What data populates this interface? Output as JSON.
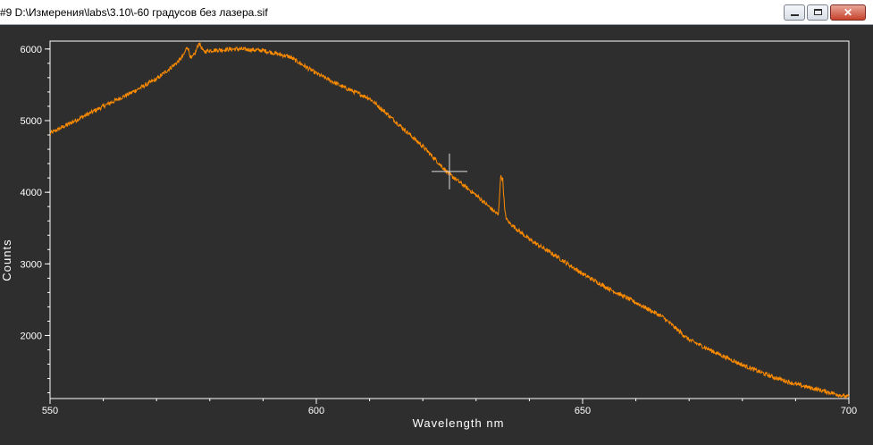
{
  "window": {
    "title": "#9   D:\\Измерения\\labs\\3.10\\-60 градусов без лазера.sif",
    "buttons": {
      "minimize": "minimize-icon",
      "maximize": "maximize-icon",
      "close": "close-icon"
    }
  },
  "colors": {
    "background": "#2e2e2e",
    "plot_area": "#2e2e2e",
    "axis": "#ffffff",
    "series": "#ff8c00"
  },
  "chart_data": {
    "type": "line",
    "xlabel": "Wavelength nm",
    "ylabel": "Counts",
    "xlim": [
      550,
      700
    ],
    "ylim": [
      1120,
      6110
    ],
    "xticks": [
      550,
      600,
      650,
      700
    ],
    "yticks": [
      2000,
      3000,
      4000,
      5000,
      6000
    ],
    "grid": false,
    "series": [
      {
        "x": [
          550,
          555,
          560,
          565,
          570,
          572,
          574,
          575,
          575.8,
          576.5,
          577.2,
          578,
          578.8,
          580,
          585,
          590,
          595,
          600,
          605,
          610,
          615,
          620,
          625,
          630,
          634.2,
          634.6,
          635.0,
          635.4,
          635.8,
          636.3,
          640,
          645,
          650,
          655,
          660,
          665,
          670,
          675,
          680,
          685,
          690,
          695,
          700
        ],
        "y": [
          4820,
          5010,
          5200,
          5380,
          5580,
          5700,
          5820,
          5900,
          6040,
          5860,
          5930,
          6090,
          5960,
          5980,
          6000,
          5980,
          5890,
          5660,
          5470,
          5310,
          4980,
          4640,
          4250,
          3960,
          3680,
          4220,
          4180,
          3720,
          3610,
          3570,
          3340,
          3110,
          2860,
          2650,
          2460,
          2260,
          1940,
          1760,
          1590,
          1440,
          1320,
          1230,
          1140
        ]
      }
    ],
    "cursor": {
      "x": 625,
      "y": 4290
    }
  }
}
